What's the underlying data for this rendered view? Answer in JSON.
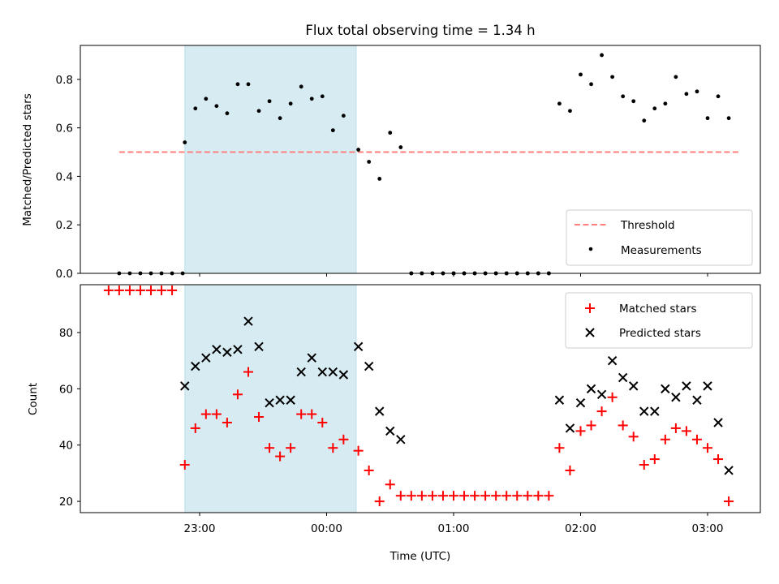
{
  "chart_data": [
    {
      "panel": "top",
      "type": "scatter",
      "title": "Flux total observing time = 1.34 h",
      "ylabel": "Matched/Predicted stars",
      "xlabel": "",
      "ylim": [
        0,
        0.94
      ],
      "yticks": [
        0.0,
        0.2,
        0.4,
        0.6,
        0.8
      ],
      "shaded_interval": {
        "start": "22:53",
        "end": "00:14",
        "color": "#add8e6"
      },
      "threshold": {
        "name": "Threshold",
        "value": 0.5,
        "x_start": "22:22",
        "x_end": "03:15",
        "color": "#ff7f7f"
      },
      "series": [
        {
          "name": "Measurements",
          "color": "#000000",
          "x": [
            "22:22",
            "22:27",
            "22:32",
            "22:37",
            "22:42",
            "22:47",
            "22:52",
            "22:53",
            "22:58",
            "23:03",
            "23:08",
            "23:13",
            "23:18",
            "23:23",
            "23:28",
            "23:33",
            "23:38",
            "23:43",
            "23:48",
            "23:53",
            "23:58",
            "00:03",
            "00:08",
            "00:15",
            "00:20",
            "00:25",
            "00:30",
            "00:35",
            "00:40",
            "00:45",
            "00:50",
            "00:55",
            "01:00",
            "01:05",
            "01:10",
            "01:15",
            "01:20",
            "01:25",
            "01:30",
            "01:35",
            "01:40",
            "01:45",
            "01:50",
            "01:55",
            "02:00",
            "02:05",
            "02:10",
            "02:15",
            "02:20",
            "02:25",
            "02:30",
            "02:35",
            "02:40",
            "02:45",
            "02:50",
            "02:55",
            "03:00",
            "03:05",
            "03:10"
          ],
          "y": [
            0,
            0,
            0,
            0,
            0,
            0,
            0,
            0.54,
            0.68,
            0.72,
            0.69,
            0.66,
            0.78,
            0.78,
            0.67,
            0.71,
            0.64,
            0.7,
            0.77,
            0.72,
            0.73,
            0.59,
            0.65,
            0.51,
            0.46,
            0.39,
            0.58,
            0.52,
            0,
            0,
            0,
            0,
            0,
            0,
            0,
            0,
            0,
            0,
            0,
            0,
            0,
            0,
            0.7,
            0.67,
            0.82,
            0.78,
            0.9,
            0.81,
            0.73,
            0.71,
            0.63,
            0.68,
            0.7,
            0.81,
            0.74,
            0.75,
            0.64,
            0.73,
            0.64
          ],
          "x_zero_points": [
            "00:40",
            "00:45",
            "00:50",
            "00:55",
            "01:00",
            "01:05",
            "01:10",
            "01:15",
            "01:20",
            "01:25",
            "01:30",
            "01:35",
            "01:40",
            "01:45"
          ],
          "note_x": ""
        }
      ],
      "legend": {
        "placement": "lower right",
        "entries": [
          "Threshold",
          "Measurements"
        ]
      }
    },
    {
      "panel": "bottom",
      "type": "scatter",
      "xlabel": "Time (UTC)",
      "ylabel": "Count",
      "ylim": [
        16,
        97
      ],
      "yticks": [
        20,
        40,
        60,
        80
      ],
      "xticks": [
        "23:00",
        "00:00",
        "01:00",
        "02:00",
        "03:00"
      ],
      "shaded_interval": {
        "start": "22:53",
        "end": "00:14",
        "color": "#add8e6"
      },
      "series": [
        {
          "name": "Matched stars",
          "marker": "plus",
          "color": "#ff0000",
          "x": [
            "22:17",
            "22:22",
            "22:27",
            "22:32",
            "22:37",
            "22:42",
            "22:47",
            "22:53",
            "22:58",
            "23:03",
            "23:08",
            "23:13",
            "23:18",
            "23:23",
            "23:28",
            "23:33",
            "23:38",
            "23:43",
            "23:48",
            "23:53",
            "23:58",
            "00:03",
            "00:08",
            "00:15",
            "00:20",
            "00:25",
            "00:30",
            "00:35",
            "00:40",
            "00:45",
            "00:50",
            "00:55",
            "01:00",
            "01:05",
            "01:10",
            "01:15",
            "01:20",
            "01:25",
            "01:30",
            "01:35",
            "01:40",
            "01:45",
            "01:50",
            "01:55",
            "02:00",
            "02:05",
            "02:10",
            "02:15",
            "02:20",
            "02:25",
            "02:30",
            "02:35",
            "02:40",
            "02:45",
            "02:50",
            "02:55",
            "03:00",
            "03:05",
            "03:10"
          ],
          "y": [
            95,
            95,
            95,
            95,
            95,
            95,
            95,
            33,
            46,
            51,
            51,
            48,
            58,
            66,
            50,
            39,
            36,
            39,
            51,
            51,
            48,
            39,
            42,
            38,
            31,
            20,
            26,
            22,
            22,
            22,
            22,
            22,
            22,
            22,
            22,
            22,
            22,
            22,
            22,
            22,
            22,
            22,
            39,
            31,
            45,
            47,
            52,
            57,
            47,
            43,
            33,
            35,
            42,
            46,
            45,
            42,
            39,
            35,
            20
          ]
        },
        {
          "name": "Predicted stars",
          "marker": "x",
          "color": "#000000",
          "x": [
            "22:53",
            "22:58",
            "23:03",
            "23:08",
            "23:13",
            "23:18",
            "23:23",
            "23:28",
            "23:33",
            "23:38",
            "23:43",
            "23:48",
            "23:53",
            "23:58",
            "00:03",
            "00:08",
            "00:15",
            "00:20",
            "00:25",
            "00:30",
            "00:35",
            "01:50",
            "01:55",
            "02:00",
            "02:05",
            "02:10",
            "02:15",
            "02:20",
            "02:25",
            "02:30",
            "02:35",
            "02:40",
            "02:45",
            "02:50",
            "02:55",
            "03:00",
            "03:05",
            "03:10"
          ],
          "y": [
            61,
            68,
            71,
            74,
            73,
            74,
            84,
            75,
            55,
            56,
            56,
            66,
            71,
            66,
            66,
            65,
            75,
            68,
            52,
            45,
            42,
            56,
            46,
            55,
            60,
            58,
            70,
            64,
            61,
            52,
            52,
            60,
            57,
            61,
            56,
            61,
            48,
            31
          ]
        }
      ],
      "legend": {
        "placement": "upper right",
        "entries": [
          "Matched stars",
          "Predicted stars"
        ]
      }
    }
  ]
}
